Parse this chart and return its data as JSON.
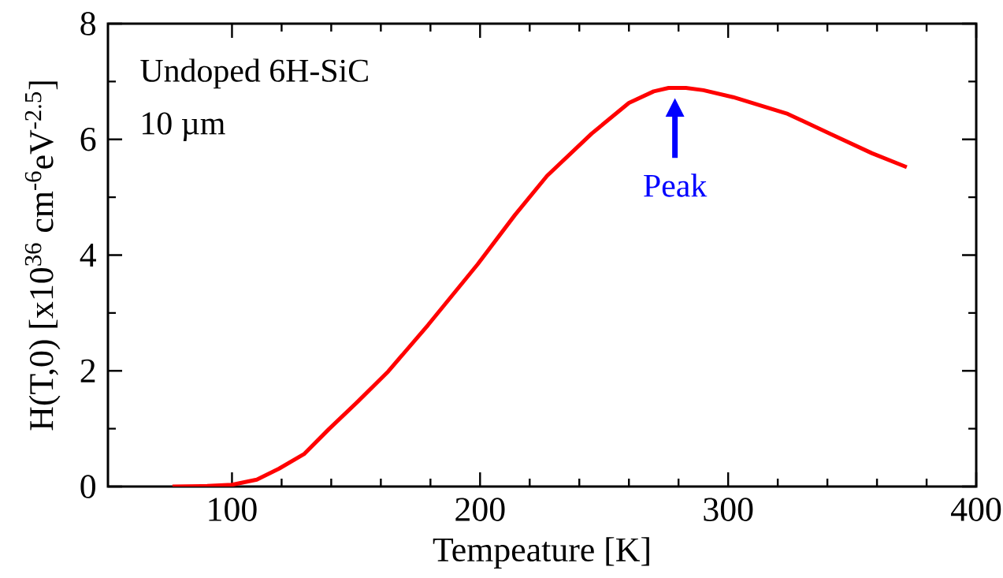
{
  "chart_data": {
    "type": "line",
    "xlabel": "Tempeature [K]",
    "ylabel": "H(T,0)   [x10$^{36}$ cm$^{-6}$eV$^{-2.5}$]",
    "x": [
      76,
      90,
      100,
      110,
      119,
      129,
      139,
      151,
      163,
      179,
      199,
      214,
      227,
      245,
      260,
      270,
      276,
      283,
      290,
      302,
      324,
      341,
      358,
      372
    ],
    "series": [
      {
        "color": "#ff0000",
        "values": [
          0,
          0.01,
          0.03,
          0.12,
          0.31,
          0.56,
          0.99,
          1.48,
          1.99,
          2.79,
          3.84,
          4.69,
          5.37,
          6.1,
          6.63,
          6.83,
          6.89,
          6.89,
          6.85,
          6.73,
          6.44,
          6.1,
          5.76,
          5.52
        ]
      }
    ],
    "annotations": [
      "Undoped 6H-SiC",
      "10 µm",
      "Peak"
    ],
    "xlim": [
      50,
      400
    ],
    "xticks": [
      100,
      200,
      300,
      400
    ],
    "ylim": [
      0,
      8
    ],
    "yticks": [
      0,
      2,
      4,
      6,
      8
    ],
    "marker": "none",
    "line_style": "solid"
  }
}
